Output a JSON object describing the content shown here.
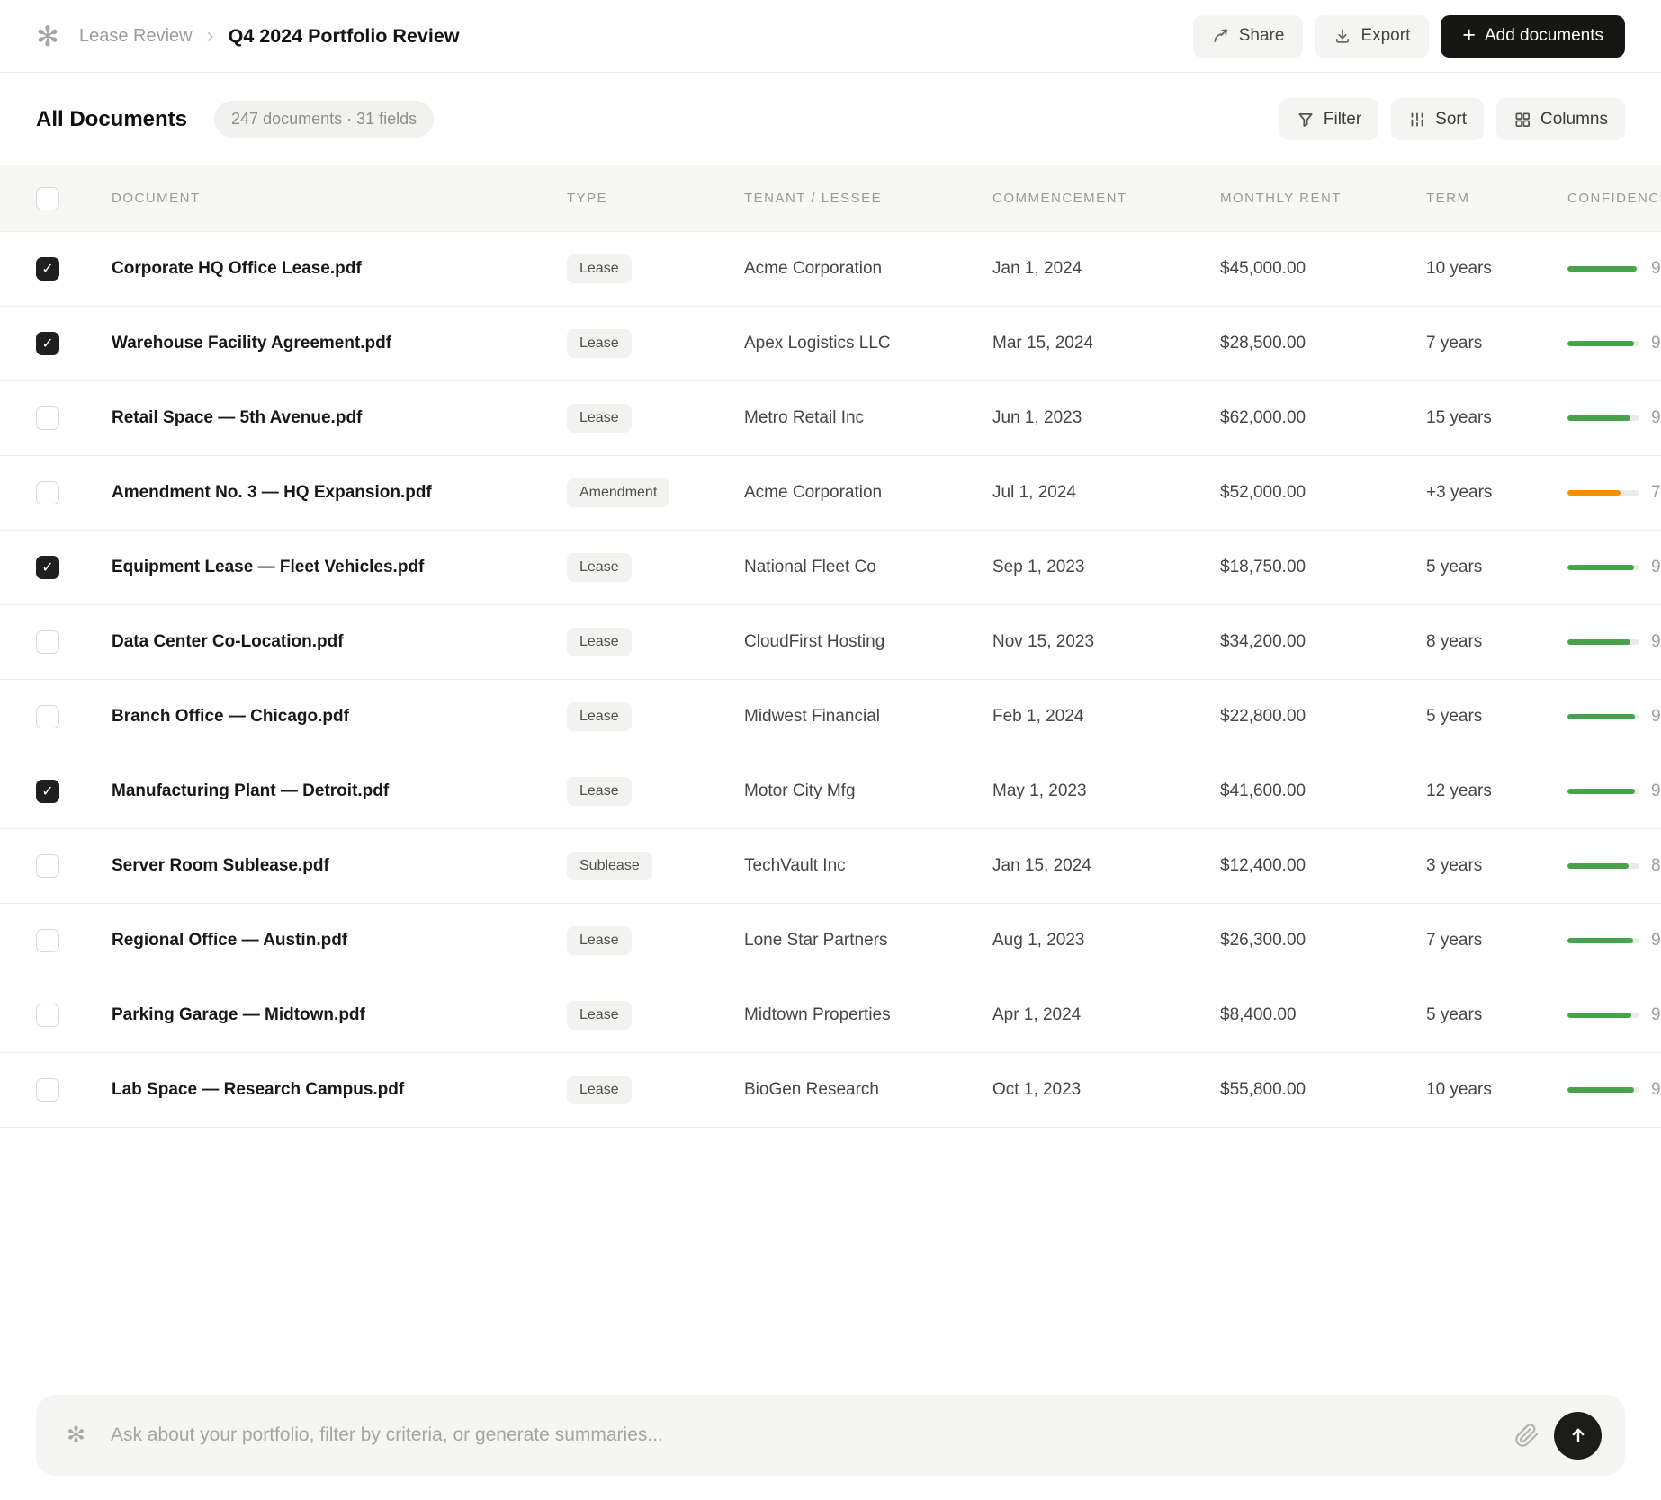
{
  "header": {
    "logo_glyph": "✻",
    "breadcrumb_parent": "Lease Review",
    "breadcrumb_separator": "›",
    "title": "Q4 2024 Portfolio Review",
    "share_label": "Share",
    "export_label": "Export",
    "add_documents_plus": "+",
    "add_documents_label": "Add documents"
  },
  "toolbar": {
    "section_title": "All Documents",
    "summary_badge": "247 documents · 31 fields",
    "filter_label": "Filter",
    "sort_label": "Sort",
    "columns_label": "Columns"
  },
  "table": {
    "headers": {
      "document": "DOCUMENT",
      "type": "TYPE",
      "tenant": "TENANT / LESSEE",
      "commencement": "COMMENCEMENT",
      "rent": "MONTHLY RENT",
      "term": "TERM",
      "confidence": "CONFIDENCE"
    },
    "confidence_colors": {
      "green": "#47a34b",
      "orange": "#fc8c00"
    },
    "rows": [
      {
        "checked": true,
        "document": "Corporate HQ Office Lease.pdf",
        "type": "Lease",
        "tenant": "Acme Corporation",
        "commencement": "Jan 1, 2024",
        "rent": "$45,000.00",
        "term": "10 years",
        "confidence_digit": "9",
        "confidence_pct": 96,
        "confidence_color": "#47a34b"
      },
      {
        "checked": true,
        "document": "Warehouse Facility Agreement.pdf",
        "type": "Lease",
        "tenant": "Apex Logistics LLC",
        "commencement": "Mar 15, 2024",
        "rent": "$28,500.00",
        "term": "7 years",
        "confidence_digit": "9",
        "confidence_pct": 92,
        "confidence_color": "#47a34b"
      },
      {
        "checked": false,
        "document": "Retail Space — 5th Avenue.pdf",
        "type": "Lease",
        "tenant": "Metro Retail Inc",
        "commencement": "Jun 1, 2023",
        "rent": "$62,000.00",
        "term": "15 years",
        "confidence_digit": "9",
        "confidence_pct": 88,
        "confidence_color": "#47a34b"
      },
      {
        "checked": false,
        "document": "Amendment No. 3 — HQ Expansion.pdf",
        "type": "Amendment",
        "tenant": "Acme Corporation",
        "commencement": "Jul 1, 2024",
        "rent": "$52,000.00",
        "term": "+3 years",
        "confidence_digit": "7",
        "confidence_pct": 74,
        "confidence_color": "#fc8c00"
      },
      {
        "checked": true,
        "document": "Equipment Lease — Fleet Vehicles.pdf",
        "type": "Lease",
        "tenant": "National Fleet Co",
        "commencement": "Sep 1, 2023",
        "rent": "$18,750.00",
        "term": "5 years",
        "confidence_digit": "9",
        "confidence_pct": 92,
        "confidence_color": "#47a34b"
      },
      {
        "checked": false,
        "document": "Data Center Co-Location.pdf",
        "type": "Lease",
        "tenant": "CloudFirst Hosting",
        "commencement": "Nov 15, 2023",
        "rent": "$34,200.00",
        "term": "8 years",
        "confidence_digit": "9",
        "confidence_pct": 87,
        "confidence_color": "#47a34b"
      },
      {
        "checked": false,
        "document": "Branch Office — Chicago.pdf",
        "type": "Lease",
        "tenant": "Midwest Financial",
        "commencement": "Feb 1, 2024",
        "rent": "$22,800.00",
        "term": "5 years",
        "confidence_digit": "9",
        "confidence_pct": 94,
        "confidence_color": "#47a34b"
      },
      {
        "checked": true,
        "document": "Manufacturing Plant — Detroit.pdf",
        "type": "Lease",
        "tenant": "Motor City Mfg",
        "commencement": "May 1, 2023",
        "rent": "$41,600.00",
        "term": "12 years",
        "confidence_digit": "9",
        "confidence_pct": 94,
        "confidence_color": "#47a34b"
      },
      {
        "checked": false,
        "document": "Server Room Sublease.pdf",
        "type": "Sublease",
        "tenant": "TechVault Inc",
        "commencement": "Jan 15, 2024",
        "rent": "$12,400.00",
        "term": "3 years",
        "confidence_digit": "8",
        "confidence_pct": 85,
        "confidence_color": "#47a34b"
      },
      {
        "checked": false,
        "document": "Regional Office — Austin.pdf",
        "type": "Lease",
        "tenant": "Lone Star Partners",
        "commencement": "Aug 1, 2023",
        "rent": "$26,300.00",
        "term": "7 years",
        "confidence_digit": "9",
        "confidence_pct": 91,
        "confidence_color": "#47a34b"
      },
      {
        "checked": false,
        "document": "Parking Garage — Midtown.pdf",
        "type": "Lease",
        "tenant": "Midtown Properties",
        "commencement": "Apr 1, 2024",
        "rent": "$8,400.00",
        "term": "5 years",
        "confidence_digit": "9",
        "confidence_pct": 89,
        "confidence_color": "#47a34b"
      },
      {
        "checked": false,
        "document": "Lab Space — Research Campus.pdf",
        "type": "Lease",
        "tenant": "BioGen Research",
        "commencement": "Oct 1, 2023",
        "rent": "$55,800.00",
        "term": "10 years",
        "confidence_digit": "9",
        "confidence_pct": 93,
        "confidence_color": "#47a34b"
      }
    ]
  },
  "chat": {
    "spark_glyph": "✻",
    "placeholder": "Ask about your portfolio, filter by criteria, or generate summaries..."
  }
}
